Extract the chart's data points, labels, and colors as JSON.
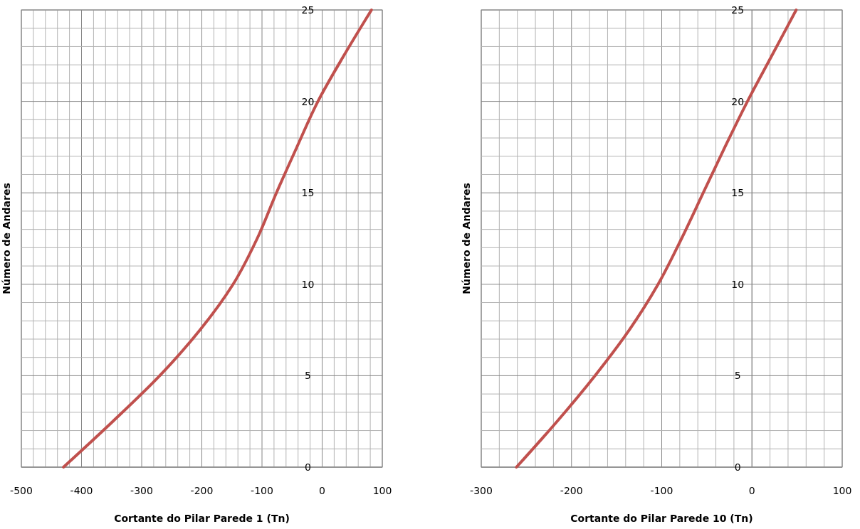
{
  "chart_data": [
    {
      "type": "line",
      "xlabel": "Cortante do Pilar Parede 1 (Tn)",
      "ylabel": "Número de Andares",
      "xlim": [
        -500,
        100
      ],
      "ylim": [
        0,
        25
      ],
      "xticks": [
        -500,
        {
          "value": -480,
          "label": null
        },
        {
          "value": -460,
          "label": null
        },
        {
          "value": -440,
          "label": null
        },
        {
          "value": -420,
          "label": null
        },
        -400,
        {
          "value": -380,
          "label": null
        },
        {
          "value": -360,
          "label": null
        },
        {
          "value": -340,
          "label": null
        },
        {
          "value": -320,
          "label": null
        },
        -300,
        {
          "value": -280,
          "label": null
        },
        {
          "value": -260,
          "label": null
        },
        {
          "value": -240,
          "label": null
        },
        {
          "value": -220,
          "label": null
        },
        -200,
        {
          "value": -180,
          "label": null
        },
        {
          "value": -160,
          "label": null
        },
        {
          "value": -140,
          "label": null
        },
        {
          "value": -120,
          "label": null
        },
        -100,
        {
          "value": -80,
          "label": null
        },
        {
          "value": -60,
          "label": null
        },
        {
          "value": -40,
          "label": null
        },
        {
          "value": -20,
          "label": null
        },
        0,
        {
          "value": 20,
          "label": null
        },
        {
          "value": 40,
          "label": null
        },
        {
          "value": 60,
          "label": null
        },
        {
          "value": 80,
          "label": null
        },
        100
      ],
      "yticks": [
        0,
        {
          "value": 1,
          "label": null
        },
        {
          "value": 2,
          "label": null
        },
        {
          "value": 3,
          "label": null
        },
        {
          "value": 4,
          "label": null
        },
        5,
        {
          "value": 6,
          "label": null
        },
        {
          "value": 7,
          "label": null
        },
        {
          "value": 8,
          "label": null
        },
        {
          "value": 9,
          "label": null
        },
        10,
        {
          "value": 11,
          "label": null
        },
        {
          "value": 12,
          "label": null
        },
        {
          "value": 13,
          "label": null
        },
        {
          "value": 14,
          "label": null
        },
        15,
        {
          "value": 16,
          "label": null
        },
        {
          "value": 17,
          "label": null
        },
        {
          "value": 18,
          "label": null
        },
        {
          "value": 19,
          "label": null
        },
        20,
        {
          "value": 21,
          "label": null
        },
        {
          "value": 22,
          "label": null
        },
        {
          "value": 23,
          "label": null
        },
        {
          "value": 24,
          "label": null
        },
        25
      ],
      "grid": true,
      "series": [
        {
          "color": "#c0504d",
          "x": [
            -430,
            -348,
            -270,
            -203,
            -148,
            -108,
            -76,
            -42,
            -7,
            36,
            82
          ],
          "values": [
            0,
            2.5,
            5,
            7.5,
            10,
            12.5,
            15,
            17.5,
            20,
            22.5,
            25
          ]
        }
      ]
    },
    {
      "type": "line",
      "xlabel": "Cortante do Pilar Parede 10 (Tn)",
      "ylabel": "Número de Andares",
      "xlim": [
        -300,
        100
      ],
      "ylim": [
        0,
        25
      ],
      "xticks": [
        -300,
        {
          "value": -280,
          "label": null
        },
        {
          "value": -260,
          "label": null
        },
        {
          "value": -240,
          "label": null
        },
        {
          "value": -220,
          "label": null
        },
        -200,
        {
          "value": -180,
          "label": null
        },
        {
          "value": -160,
          "label": null
        },
        {
          "value": -140,
          "label": null
        },
        {
          "value": -120,
          "label": null
        },
        -100,
        {
          "value": -80,
          "label": null
        },
        {
          "value": -60,
          "label": null
        },
        {
          "value": -40,
          "label": null
        },
        {
          "value": -20,
          "label": null
        },
        0,
        {
          "value": 20,
          "label": null
        },
        {
          "value": 40,
          "label": null
        },
        {
          "value": 60,
          "label": null
        },
        {
          "value": 80,
          "label": null
        },
        100
      ],
      "yticks": [
        0,
        {
          "value": 1,
          "label": null
        },
        {
          "value": 2,
          "label": null
        },
        {
          "value": 3,
          "label": null
        },
        {
          "value": 4,
          "label": null
        },
        5,
        {
          "value": 6,
          "label": null
        },
        {
          "value": 7,
          "label": null
        },
        {
          "value": 8,
          "label": null
        },
        {
          "value": 9,
          "label": null
        },
        10,
        {
          "value": 11,
          "label": null
        },
        {
          "value": 12,
          "label": null
        },
        {
          "value": 13,
          "label": null
        },
        {
          "value": 14,
          "label": null
        },
        15,
        {
          "value": 16,
          "label": null
        },
        {
          "value": 17,
          "label": null
        },
        {
          "value": 18,
          "label": null
        },
        {
          "value": 19,
          "label": null
        },
        20,
        {
          "value": 21,
          "label": null
        },
        {
          "value": 22,
          "label": null
        },
        {
          "value": 23,
          "label": null
        },
        {
          "value": 24,
          "label": null
        },
        25
      ],
      "grid": true,
      "series": [
        {
          "color": "#c0504d",
          "x": [
            -261,
            -216,
            -174,
            -136,
            -104,
            -78,
            -54,
            -30,
            -5,
            22,
            49
          ],
          "values": [
            0,
            2.5,
            5,
            7.5,
            10,
            12.5,
            15,
            17.5,
            20,
            22.5,
            25
          ]
        }
      ]
    }
  ]
}
